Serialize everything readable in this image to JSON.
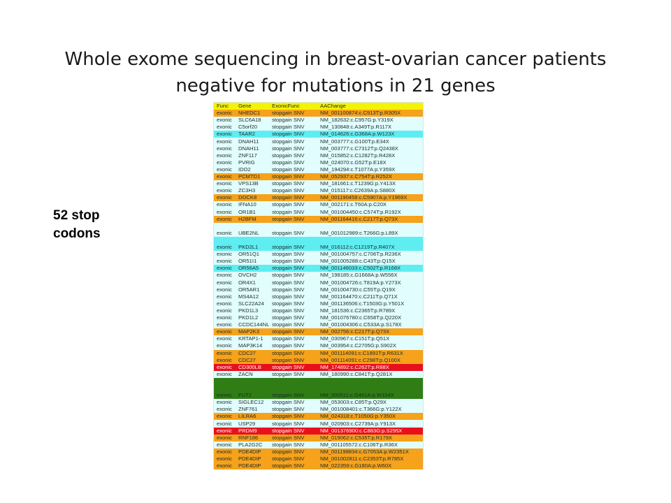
{
  "title": {
    "line1": "Whole exome sequencing in breast-ovarian cancer patients",
    "line2": "negative for mutations in 21 genes"
  },
  "side_label": {
    "line1": "52 stop",
    "line2": "codons"
  },
  "colors": {
    "header": "#f6f205",
    "orange": "#f6a21b",
    "cyan": "#5eeef2",
    "red": "#e8101c",
    "green": "#2f7d14",
    "base": "#e2fdfd"
  },
  "table": {
    "headers": [
      "Func",
      "Gene",
      "ExonicFunc",
      "AAChange"
    ],
    "rows": [
      {
        "func": "exonic",
        "gene": "NHEDC1",
        "efunc": "stopgain SNV",
        "aa": "NM_001100874:c.C913T:p.R305X",
        "hl": "orange"
      },
      {
        "func": "exonic",
        "gene": "SLC6A18",
        "efunc": "stopgain SNV",
        "aa": "NM_182632:c.C957G:p.Y319X",
        "hl": ""
      },
      {
        "func": "exonic",
        "gene": "C5orf20",
        "efunc": "stopgain SNV",
        "aa": "NM_130848:c.A349T:p.R117X",
        "hl": ""
      },
      {
        "func": "exonic",
        "gene": "TAAR2",
        "efunc": "stopgain SNV",
        "aa": "NM_014626:c.G368A:p.W123X",
        "hl": "cyan"
      },
      {
        "func": "exonic",
        "gene": "DNAH11",
        "efunc": "stopgain SNV",
        "aa": "NM_003777:c.G100T:p.E34X",
        "hl": ""
      },
      {
        "func": "exonic",
        "gene": "DNAH11",
        "efunc": "stopgain SNV",
        "aa": "NM_003777:c.C7312T:p.Q2438X",
        "hl": ""
      },
      {
        "func": "exonic",
        "gene": "ZNF117",
        "efunc": "stopgain SNV",
        "aa": "NM_015852:c.C1282T:p.R428X",
        "hl": ""
      },
      {
        "func": "exonic",
        "gene": "PVRIG",
        "efunc": "stopgain SNV",
        "aa": "NM_024070:c.G52T:p.E18X",
        "hl": ""
      },
      {
        "func": "exonic",
        "gene": "IDO2",
        "efunc": "stopgain SNV",
        "aa": "NM_194294:c.T1077A:p.Y359X",
        "hl": ""
      },
      {
        "func": "exonic",
        "gene": "PCMTD1",
        "efunc": "stopgain SNV",
        "aa": "NM_052937:c.C754T:p.R252X",
        "hl": "orange"
      },
      {
        "func": "exonic",
        "gene": "VPS13B",
        "efunc": "stopgain SNV",
        "aa": "NM_181661:c.T1239G:p.Y413X",
        "hl": ""
      },
      {
        "func": "exonic",
        "gene": "ZC3H3",
        "efunc": "stopgain SNV",
        "aa": "NM_015117:c.C2639A:p.S880X",
        "hl": ""
      },
      {
        "func": "exonic",
        "gene": "DOCK8",
        "efunc": "stopgain SNV",
        "aa": "NM_001190458:c.C5907A:p.Y1969X",
        "hl": "orange"
      },
      {
        "func": "exonic",
        "gene": "IFNA10",
        "efunc": "stopgain SNV",
        "aa": "NM_002171:c.T60A:p.C20X",
        "hl": ""
      },
      {
        "func": "exonic",
        "gene": "OR1B1",
        "efunc": "stopgain SNV",
        "aa": "NM_001004450:c.C574T:p.R192X",
        "hl": ""
      },
      {
        "func": "exonic",
        "gene": "H2BFM",
        "efunc": "stopgain SNV",
        "aa": "NM_001164416:c.C217T:p.Q73X",
        "hl": "orange"
      },
      {
        "func": "",
        "gene": "",
        "efunc": "",
        "aa": "",
        "hl": ""
      },
      {
        "func": "exonic",
        "gene": "UBE2NL",
        "efunc": "stopgain SNV",
        "aa": "NM_001012989:c.T266G:p.L89X",
        "hl": ""
      },
      {
        "func": "",
        "gene": "",
        "efunc": "",
        "aa": "",
        "hl": "cyan"
      },
      {
        "func": "exonic",
        "gene": "PKD2L1",
        "efunc": "stopgain SNV",
        "aa": "NM_016112:c.C1219T:p.R407X",
        "hl": "cyan"
      },
      {
        "func": "exonic",
        "gene": "OR51Q1",
        "efunc": "stopgain SNV",
        "aa": "NM_001004757:c.C706T:p.R236X",
        "hl": ""
      },
      {
        "func": "exonic",
        "gene": "OR51I1",
        "efunc": "stopgain SNV",
        "aa": "NM_001005288:c.C43T:p.Q15X",
        "hl": ""
      },
      {
        "func": "exonic",
        "gene": "OR56A5",
        "efunc": "stopgain SNV",
        "aa": "NM_001146033:c.C502T:p.R168X",
        "hl": "cyan"
      },
      {
        "func": "exonic",
        "gene": "OVCH2",
        "efunc": "stopgain SNV",
        "aa": "NM_198185:c.G1668A:p.W556X",
        "hl": ""
      },
      {
        "func": "exonic",
        "gene": "OR4X1",
        "efunc": "stopgain SNV",
        "aa": "NM_001004726:c.T819A:p.Y273X",
        "hl": ""
      },
      {
        "func": "exonic",
        "gene": "OR5AR1",
        "efunc": "stopgain SNV",
        "aa": "NM_001004730:c.C55T:p.Q19X",
        "hl": ""
      },
      {
        "func": "exonic",
        "gene": "MS4A12",
        "efunc": "stopgain SNV",
        "aa": "NM_001164470:c.C211T:p.Q71X",
        "hl": ""
      },
      {
        "func": "exonic",
        "gene": "SLC22A24",
        "efunc": "stopgain SNV",
        "aa": "NM_001136506:c.T1503G:p.Y501X",
        "hl": ""
      },
      {
        "func": "exonic",
        "gene": "PKD1L3",
        "efunc": "stopgain SNV",
        "aa": "NM_181536:c.C2365T:p.R789X",
        "hl": ""
      },
      {
        "func": "exonic",
        "gene": "PKD1L2",
        "efunc": "stopgain SNV",
        "aa": "NM_001076780:c.C658T:p.Q220X",
        "hl": ""
      },
      {
        "func": "exonic",
        "gene": "CCDC144NL",
        "efunc": "stopgain SNV",
        "aa": "NM_001004306:c.C533A:p.S178X",
        "hl": ""
      },
      {
        "func": "exonic",
        "gene": "MAP2K3",
        "efunc": "stopgain SNV",
        "aa": "NM_002756:c.C217T:p.Q73X",
        "hl": "orange"
      },
      {
        "func": "exonic",
        "gene": "KRTAP1-1",
        "efunc": "stopgain SNV",
        "aa": "NM_030967:c.C151T:p.Q51X",
        "hl": ""
      },
      {
        "func": "exonic",
        "gene": "MAP3K14",
        "efunc": "stopgain SNV",
        "aa": "NM_003954:c.C2705G:p.S902X",
        "hl": ""
      },
      {
        "func": "exonic",
        "gene": "CDC27",
        "efunc": "stopgain SNV",
        "aa": "NM_001114091:c.C1891T:p.R631X",
        "hl": "orange"
      },
      {
        "func": "exonic",
        "gene": "CDC27",
        "efunc": "stopgain SNV",
        "aa": "NM_001114091:c.C298T:p.Q100X",
        "hl": "orange"
      },
      {
        "func": "exonic",
        "gene": "CD300LB",
        "efunc": "stopgain SNV",
        "aa": "NM_174892:c.C262T:p.R88X",
        "hl": "red"
      },
      {
        "func": "exonic",
        "gene": "ZACN",
        "efunc": "stopgain SNV",
        "aa": "NM_180990:c.C841T:p.Q281X",
        "hl": ""
      },
      {
        "func": "",
        "gene": "",
        "efunc": "",
        "aa": "",
        "hl": "green"
      },
      {
        "func": "",
        "gene": "",
        "efunc": "",
        "aa": "",
        "hl": "green"
      },
      {
        "func": "exonic",
        "gene": "FUT2",
        "efunc": "stopgain SNV",
        "aa": "NM_000511:c.G461A:p.W154X",
        "hl": "green"
      },
      {
        "func": "exonic",
        "gene": "SIGLEC12",
        "efunc": "stopgain SNV",
        "aa": "NM_053003:c.C85T:p.Q29X",
        "hl": ""
      },
      {
        "func": "exonic",
        "gene": "ZNF761",
        "efunc": "stopgain SNV",
        "aa": "NM_001008401:c.T366G:p.Y122X",
        "hl": ""
      },
      {
        "func": "exonic",
        "gene": "LILRA6",
        "efunc": "stopgain SNV",
        "aa": "NM_024318:c.T1050G:p.Y350X",
        "hl": "orange"
      },
      {
        "func": "exonic",
        "gene": "USP29",
        "efunc": "stopgain SNV",
        "aa": "NM_020903:c.C2739A:p.Y913X",
        "hl": ""
      },
      {
        "func": "exonic",
        "gene": "PRDM9",
        "efunc": "stopgain SNV",
        "aa": "NM_001376900:c.C883G:p.S295X",
        "hl": "red"
      },
      {
        "func": "exonic",
        "gene": "RNF186",
        "efunc": "stopgain SNV",
        "aa": "NM_019062:c.C535T:p.R179X",
        "hl": "orange"
      },
      {
        "func": "exonic",
        "gene": "PLA2G2C",
        "efunc": "stopgain SNV",
        "aa": "NM_001105572:c.C106T:p.R36X",
        "hl": ""
      },
      {
        "func": "exonic",
        "gene": "PDE4DIP",
        "efunc": "stopgain SNV",
        "aa": "NM_001198834:c.G7053A:p.W2351X",
        "hl": "orange"
      },
      {
        "func": "exonic",
        "gene": "PDE4DIP",
        "efunc": "stopgain SNV",
        "aa": "NM_001002811:c.C2353T:p.R785X",
        "hl": "orange"
      },
      {
        "func": "exonic",
        "gene": "PDE4DIP",
        "efunc": "stopgain SNV",
        "aa": "NM_022359:c.G180A:p.W60X",
        "hl": "orange"
      }
    ]
  }
}
